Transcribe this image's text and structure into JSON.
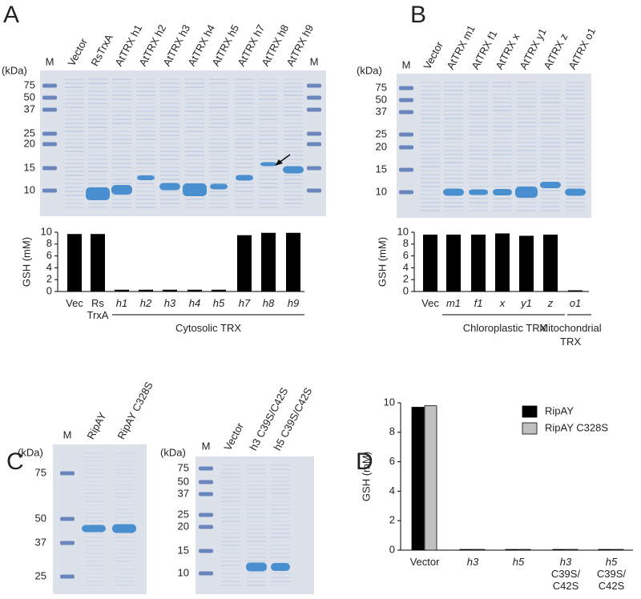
{
  "panel_labels": [
    "A",
    "B",
    "C",
    "D"
  ],
  "gels": [
    {
      "lanes": [
        "M",
        "Vector",
        "RsTrxA",
        "AtTRX h1",
        "AtTRX h2",
        "AtTRX h3",
        "AtTRX h4",
        "AtTRX h5",
        "AtTRX h7",
        "AtTRX h8",
        "AtTRX h9",
        "M"
      ],
      "unit_label": "(kDa)",
      "markers": [
        75,
        50,
        37,
        25,
        20,
        15,
        10
      ]
    },
    {
      "lanes": [
        "M",
        "Vector",
        "AtTRX m1",
        "AtTRX f1",
        "AtTRX x",
        "AtTRX y1",
        "AtTRX z",
        "AtTRX o1"
      ],
      "unit_label": "(kDa)",
      "markers": [
        75,
        50,
        37,
        25,
        20,
        15,
        10
      ]
    },
    {
      "lanes": [
        "M",
        "RipAY",
        "RipAY C328S"
      ],
      "unit_label": "(kDa)",
      "markers": [
        75,
        50,
        37,
        25
      ]
    },
    {
      "lanes": [
        "M",
        "Vector",
        "h3 C39S/C42S",
        "h5 C39S/C42S"
      ],
      "unit_label": "(kDa)",
      "markers": [
        75,
        50,
        37,
        25,
        20,
        15,
        10
      ]
    }
  ],
  "chart_data": [
    {
      "type": "bar",
      "ylabel": "GSH (mM)",
      "categories": [
        "Vec",
        "Rs\nTrxA",
        "h1",
        "h2",
        "h3",
        "h4",
        "h5",
        "h7",
        "h8",
        "h9"
      ],
      "category_italic": [
        false,
        false,
        true,
        true,
        true,
        true,
        true,
        true,
        true,
        true
      ],
      "values": [
        9.7,
        9.7,
        0.3,
        0.3,
        0.3,
        0.3,
        0.3,
        9.5,
        9.9,
        9.9
      ],
      "color": "#000000",
      "ylim": [
        0,
        10
      ],
      "yticks": [
        0,
        2,
        4,
        6,
        8,
        10
      ],
      "group_labels": [
        "Cytosolic TRX"
      ]
    },
    {
      "type": "bar",
      "ylabel": "GSH (mM)",
      "categories": [
        "Vec",
        "m1",
        "f1",
        "x",
        "y1",
        "z",
        "o1"
      ],
      "category_italic": [
        false,
        true,
        true,
        true,
        true,
        true,
        true
      ],
      "values": [
        9.6,
        9.6,
        9.6,
        9.8,
        9.4,
        9.6,
        0.2
      ],
      "color": "#000000",
      "ylim": [
        0,
        10
      ],
      "yticks": [
        0,
        2,
        4,
        6,
        8,
        10
      ],
      "group_labels": [
        "Chloroplastic TRX",
        "Mitochondrial\nTRX"
      ]
    },
    {
      "type": "grouped_bar",
      "ylabel": "GSH (mM)",
      "categories": [
        "Vector",
        "h3",
        "h5",
        "h3\nC39S/\nC42S",
        "h5\nC39S/\nC42S"
      ],
      "category_italic": [
        false,
        true,
        true,
        true,
        true
      ],
      "series": [
        {
          "name": "RipAY",
          "color": "#000000",
          "values": [
            9.7,
            0.05,
            0.05,
            0.05,
            0.05
          ]
        },
        {
          "name": "RipAY C328S",
          "color": "#c0c0c0",
          "values": [
            9.8,
            0.05,
            0.05,
            0.05,
            0.05
          ]
        }
      ],
      "ylim": [
        0,
        10
      ],
      "yticks": [
        0,
        2,
        4,
        6,
        8,
        10
      ],
      "legend": "upper right",
      "group_labels": []
    }
  ]
}
